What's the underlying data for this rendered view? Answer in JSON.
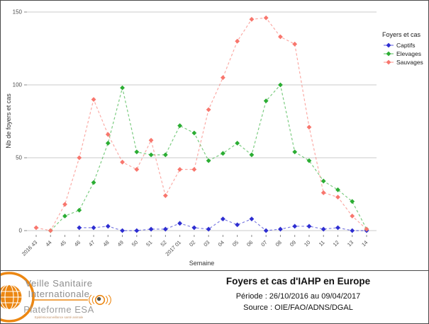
{
  "chart_data": {
    "type": "line",
    "title": "Foyers et cas d'IAHP en Europe",
    "xlabel": "Semaine",
    "ylabel": "Nb de foyers et cas",
    "ylim": [
      0,
      150
    ],
    "yticks": [
      0,
      50,
      100,
      150
    ],
    "grid": "horizontal-only",
    "legend_position": "right",
    "legend_title": "Foyers et cas",
    "line_style": "dashed",
    "marker": "diamond",
    "categories": [
      "2016 43",
      "44",
      "45",
      "46",
      "47",
      "48",
      "49",
      "50",
      "51",
      "52",
      "2017 01",
      "02",
      "03",
      "04",
      "05",
      "06",
      "07",
      "08",
      "09",
      "10",
      "11",
      "12",
      "13",
      "14"
    ],
    "series": [
      {
        "name": "Captifs",
        "color": "#2E2ED1",
        "values": [
          null,
          null,
          null,
          2,
          2,
          3,
          0,
          0,
          1,
          1,
          5,
          2,
          1,
          8,
          4,
          8,
          0,
          1,
          3,
          3,
          1,
          2,
          0,
          0
        ]
      },
      {
        "name": "Elevages",
        "color": "#2BAD33",
        "values": [
          null,
          0,
          10,
          14,
          33,
          60,
          98,
          54,
          52,
          52,
          72,
          67,
          48,
          53,
          60,
          52,
          89,
          100,
          54,
          48,
          34,
          28,
          20,
          1
        ]
      },
      {
        "name": "Sauvages",
        "color": "#F8766D",
        "values": [
          2,
          0,
          18,
          50,
          90,
          66,
          47,
          42,
          62,
          24,
          42,
          42,
          83,
          105,
          130,
          145,
          146,
          133,
          128,
          71,
          26,
          23,
          10,
          1
        ]
      }
    ]
  },
  "footer": {
    "logo": {
      "line1": "Veille Sanitaire",
      "line2": "Internationale",
      "platform": "Plateforme ESA",
      "tagline": "Epidémiosurveillance santé animale",
      "accent_color": "#EC8712"
    },
    "title": "Foyers et cas d'IAHP en Europe",
    "periode": "Période : 26/10/2016 au 09/04/2017",
    "source": "Source : OIE/FAO/ADNS/DGAL"
  }
}
